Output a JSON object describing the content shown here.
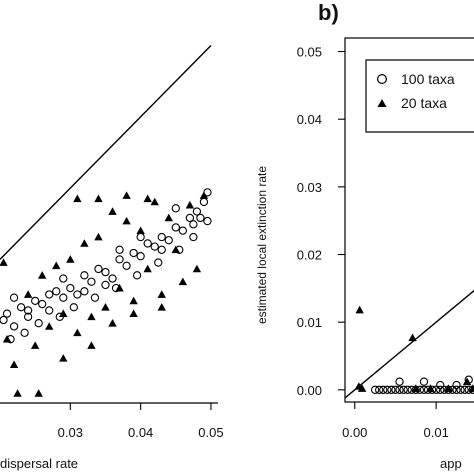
{
  "chart_data": [
    {
      "panel": "a",
      "type": "scatter",
      "title": "",
      "xlabel": "dispersal rate",
      "ylabel": "",
      "x_ticks": [
        "0.03",
        "0.04",
        "0.05"
      ],
      "xlim": [
        0.02,
        0.051
      ],
      "ylim": [
        0.0,
        0.12
      ],
      "reference_line": {
        "from": [
          0.02,
          0.045
        ],
        "to": [
          0.05,
          0.112
        ]
      },
      "grid": false,
      "series": [
        {
          "marker": "open-circle",
          "values": [
            [
              0.0205,
              0.026
            ],
            [
              0.021,
              0.028
            ],
            [
              0.022,
              0.024
            ],
            [
              0.023,
              0.03
            ],
            [
              0.024,
              0.027
            ],
            [
              0.025,
              0.032
            ],
            [
              0.026,
              0.031
            ],
            [
              0.027,
              0.029
            ],
            [
              0.028,
              0.035
            ],
            [
              0.029,
              0.033
            ],
            [
              0.03,
              0.036
            ],
            [
              0.031,
              0.034
            ],
            [
              0.032,
              0.04
            ],
            [
              0.033,
              0.038
            ],
            [
              0.034,
              0.042
            ],
            [
              0.035,
              0.041
            ],
            [
              0.036,
              0.039
            ],
            [
              0.037,
              0.045
            ],
            [
              0.038,
              0.043
            ],
            [
              0.039,
              0.047
            ],
            [
              0.04,
              0.046
            ],
            [
              0.041,
              0.05
            ],
            [
              0.042,
              0.049
            ],
            [
              0.043,
              0.052
            ],
            [
              0.044,
              0.051
            ],
            [
              0.045,
              0.055
            ],
            [
              0.046,
              0.054
            ],
            [
              0.047,
              0.058
            ],
            [
              0.048,
              0.06
            ],
            [
              0.049,
              0.063
            ],
            [
              0.0495,
              0.066
            ],
            [
              0.0485,
              0.058
            ],
            [
              0.0475,
              0.056
            ],
            [
              0.045,
              0.061
            ],
            [
              0.043,
              0.048
            ],
            [
              0.04,
              0.052
            ],
            [
              0.037,
              0.048
            ],
            [
              0.035,
              0.037
            ],
            [
              0.032,
              0.035
            ],
            [
              0.029,
              0.039
            ],
            [
              0.027,
              0.034
            ],
            [
              0.024,
              0.029
            ],
            [
              0.022,
              0.033
            ],
            [
              0.0215,
              0.02
            ],
            [
              0.0235,
              0.022
            ],
            [
              0.0255,
              0.025
            ],
            [
              0.0285,
              0.027
            ],
            [
              0.0305,
              0.03
            ],
            [
              0.0335,
              0.033
            ],
            [
              0.0365,
              0.036
            ],
            [
              0.0395,
              0.04
            ],
            [
              0.0425,
              0.044
            ],
            [
              0.0455,
              0.048
            ],
            [
              0.0475,
              0.052
            ],
            [
              0.0495,
              0.057
            ]
          ]
        },
        {
          "marker": "filled-triangle",
          "values": [
            [
              0.0205,
              0.044
            ],
            [
              0.021,
              0.02
            ],
            [
              0.022,
              0.012
            ],
            [
              0.0225,
              0.003
            ],
            [
              0.024,
              0.034
            ],
            [
              0.025,
              0.018
            ],
            [
              0.0255,
              0.003
            ],
            [
              0.026,
              0.04
            ],
            [
              0.027,
              0.024
            ],
            [
              0.028,
              0.043
            ],
            [
              0.029,
              0.028
            ],
            [
              0.03,
              0.045
            ],
            [
              0.031,
              0.022
            ],
            [
              0.032,
              0.05
            ],
            [
              0.033,
              0.027
            ],
            [
              0.034,
              0.052
            ],
            [
              0.035,
              0.03
            ],
            [
              0.036,
              0.06
            ],
            [
              0.037,
              0.036
            ],
            [
              0.038,
              0.057
            ],
            [
              0.039,
              0.032
            ],
            [
              0.04,
              0.054
            ],
            [
              0.041,
              0.042
            ],
            [
              0.042,
              0.063
            ],
            [
              0.043,
              0.034
            ],
            [
              0.044,
              0.058
            ],
            [
              0.045,
              0.048
            ],
            [
              0.046,
              0.038
            ],
            [
              0.047,
              0.062
            ],
            [
              0.048,
              0.042
            ],
            [
              0.049,
              0.065
            ],
            [
              0.031,
              0.064
            ],
            [
              0.034,
              0.064
            ],
            [
              0.038,
              0.065
            ],
            [
              0.041,
              0.064
            ],
            [
              0.029,
              0.014
            ],
            [
              0.033,
              0.018
            ],
            [
              0.036,
              0.025
            ],
            [
              0.039,
              0.028
            ],
            [
              0.043,
              0.03
            ]
          ]
        }
      ]
    },
    {
      "panel": "b",
      "panel_label": "b)",
      "type": "scatter",
      "title": "",
      "xlabel": "app",
      "ylabel": "estimated local extinction rate",
      "x_ticks": [
        "0.00",
        "0.01"
      ],
      "y_ticks": [
        "0.00",
        "0.01",
        "0.02",
        "0.03",
        "0.04",
        "0.05"
      ],
      "xlim": [
        -0.0012,
        0.016
      ],
      "ylim": [
        -0.0018,
        0.052
      ],
      "reference_line": {
        "from": [
          -0.0012,
          -0.0012
        ],
        "to": [
          0.016,
          0.016
        ]
      },
      "legend": {
        "position": "top-left",
        "entries": [
          "100 taxa",
          "20 taxa"
        ]
      },
      "grid": false,
      "series": [
        {
          "name": "100 taxa",
          "marker": "open-circle",
          "values": [
            [
              0.0025,
              0.0
            ],
            [
              0.003,
              0.0
            ],
            [
              0.0035,
              0.0
            ],
            [
              0.004,
              0.0
            ],
            [
              0.0045,
              0.0
            ],
            [
              0.005,
              0.0
            ],
            [
              0.0055,
              0.0
            ],
            [
              0.006,
              0.0
            ],
            [
              0.0065,
              0.0
            ],
            [
              0.007,
              0.0
            ],
            [
              0.0075,
              0.0
            ],
            [
              0.008,
              0.0
            ],
            [
              0.0085,
              0.0
            ],
            [
              0.009,
              0.0
            ],
            [
              0.0095,
              0.0
            ],
            [
              0.01,
              0.0
            ],
            [
              0.0105,
              0.0
            ],
            [
              0.011,
              0.0
            ],
            [
              0.0115,
              0.0
            ],
            [
              0.012,
              0.0
            ],
            [
              0.0125,
              0.0
            ],
            [
              0.013,
              0.0
            ],
            [
              0.0135,
              0.0
            ],
            [
              0.014,
              0.0
            ],
            [
              0.0145,
              0.0
            ],
            [
              0.015,
              0.0
            ],
            [
              0.0055,
              0.0012
            ],
            [
              0.0085,
              0.0012
            ],
            [
              0.0105,
              0.0007
            ],
            [
              0.0125,
              0.0007
            ],
            [
              0.014,
              0.0015
            ]
          ]
        },
        {
          "name": "20 taxa",
          "marker": "filled-triangle",
          "values": [
            [
              0.0006,
              0.0118
            ],
            [
              0.0005,
              0.0005
            ],
            [
              0.0009,
              0.0002
            ],
            [
              0.0071,
              0.0077
            ],
            [
              0.0075,
              0.0002
            ],
            [
              0.0093,
              0.0002
            ],
            [
              0.0115,
              0.0002
            ],
            [
              0.0138,
              0.0012
            ],
            [
              0.0145,
              0.0002
            ]
          ]
        }
      ]
    }
  ]
}
